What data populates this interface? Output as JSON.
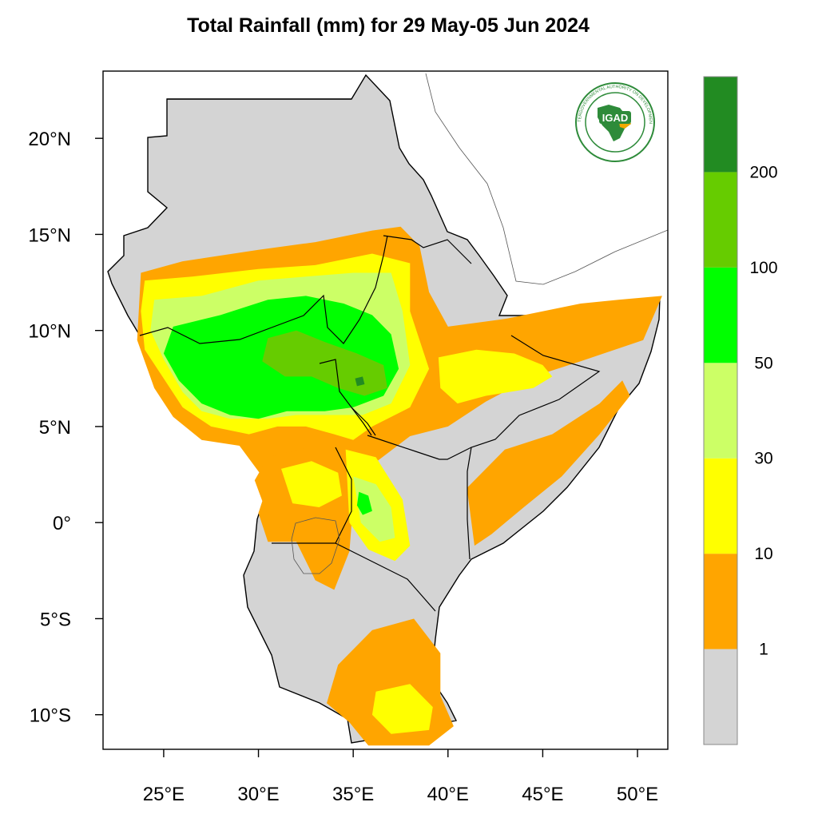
{
  "title": "Total Rainfall (mm) for 29 May-05 Jun 2024",
  "colors": {
    "land": "#d4d4d4",
    "ocean": "#ffffff",
    "border": "#000000",
    "lake": "#d4d4d4"
  },
  "axes": {
    "lon_range": [
      21.8,
      51.6
    ],
    "lat_range": [
      -11.8,
      23.5
    ],
    "x_ticks": [
      {
        "value": 25,
        "label": "25°E"
      },
      {
        "value": 30,
        "label": "30°E"
      },
      {
        "value": 35,
        "label": "35°E"
      },
      {
        "value": 40,
        "label": "40°E"
      },
      {
        "value": 45,
        "label": "45°E"
      },
      {
        "value": 50,
        "label": "50°E"
      }
    ],
    "y_ticks": [
      {
        "value": 20,
        "label": "20°N"
      },
      {
        "value": 15,
        "label": "15°N"
      },
      {
        "value": 10,
        "label": "10°N"
      },
      {
        "value": 5,
        "label": "5°N"
      },
      {
        "value": 0,
        "label": "0°"
      },
      {
        "value": -5,
        "label": "5°S"
      },
      {
        "value": -10,
        "label": "10°S"
      }
    ]
  },
  "legend": {
    "classes": [
      {
        "color": "#d4d4d4",
        "label": "1"
      },
      {
        "color": "#ffa500",
        "label": "10"
      },
      {
        "color": "#ffff00",
        "label": "30"
      },
      {
        "color": "#ccff66",
        "label": "50"
      },
      {
        "color": "#00ff00",
        "label": "100"
      },
      {
        "color": "#66cc00",
        "label": "200"
      },
      {
        "color": "#228b22",
        "label": ""
      }
    ]
  },
  "logo": {
    "text": "IGAD",
    "ring_text": "INTERGOVERNMENTAL AUTHORITY ON DEVELOPMENT",
    "primary_color": "#2e8b3a",
    "accent_color": "#f2a900"
  },
  "rainfall_regions": [
    {
      "name": "sahel-orange-band",
      "class": 1,
      "points": [
        [
          23.8,
          13.0
        ],
        [
          26,
          13.6
        ],
        [
          30,
          14.2
        ],
        [
          33,
          14.6
        ],
        [
          36,
          15.2
        ],
        [
          37.5,
          15.4
        ],
        [
          38.5,
          14.4
        ],
        [
          39,
          12.0
        ],
        [
          40,
          10.2
        ],
        [
          43,
          10.6
        ],
        [
          47,
          11.4
        ],
        [
          49,
          11.6
        ],
        [
          51.3,
          11.8
        ],
        [
          50.3,
          9.5
        ],
        [
          47,
          8.4
        ],
        [
          44.5,
          7.6
        ],
        [
          42,
          6.3
        ],
        [
          40,
          5.0
        ],
        [
          38,
          4.5
        ],
        [
          36,
          3.0
        ],
        [
          35,
          1.0
        ],
        [
          34.8,
          -1.5
        ],
        [
          34,
          -3.5
        ],
        [
          33,
          -3.0
        ],
        [
          32,
          -1.0
        ],
        [
          30.5,
          -1.0
        ],
        [
          30,
          0.5
        ],
        [
          30.5,
          2.0
        ],
        [
          29.0,
          4.0
        ],
        [
          27,
          4.3
        ],
        [
          25.5,
          5.5
        ],
        [
          24.5,
          7.0
        ],
        [
          23.6,
          9.5
        ]
      ]
    },
    {
      "name": "western-yellow-band",
      "class": 2,
      "points": [
        [
          24,
          12.6
        ],
        [
          26.5,
          12.8
        ],
        [
          30,
          13.2
        ],
        [
          33,
          13.4
        ],
        [
          36,
          14.0
        ],
        [
          38,
          13.5
        ],
        [
          38,
          11.0
        ],
        [
          39,
          8.0
        ],
        [
          38,
          6.0
        ],
        [
          36,
          5.0
        ],
        [
          35,
          4.3
        ],
        [
          34,
          4.6
        ],
        [
          32.5,
          5.0
        ],
        [
          31,
          5.0
        ],
        [
          29.5,
          4.6
        ],
        [
          27.5,
          5.0
        ],
        [
          26,
          6.0
        ],
        [
          25,
          7.5
        ],
        [
          24,
          9.0
        ],
        [
          23.8,
          11.0
        ]
      ]
    },
    {
      "name": "western-lightgreen-band",
      "class": 3,
      "points": [
        [
          24.5,
          11.6
        ],
        [
          27,
          11.8
        ],
        [
          30,
          12.6
        ],
        [
          32.5,
          12.8
        ],
        [
          35,
          13.0
        ],
        [
          37,
          13.0
        ],
        [
          37.6,
          11.0
        ],
        [
          38,
          8.2
        ],
        [
          37,
          6.2
        ],
        [
          35.5,
          5.6
        ],
        [
          34,
          5.6
        ],
        [
          32,
          5.6
        ],
        [
          30.5,
          5.4
        ],
        [
          28.5,
          5.4
        ],
        [
          27,
          5.8
        ],
        [
          26,
          6.8
        ],
        [
          25,
          8.5
        ],
        [
          24.3,
          10.0
        ]
      ]
    },
    {
      "name": "western-green-core",
      "class": 4,
      "points": [
        [
          25.5,
          10.2
        ],
        [
          28,
          10.8
        ],
        [
          30.5,
          11.6
        ],
        [
          32.5,
          11.8
        ],
        [
          34.5,
          11.4
        ],
        [
          36,
          10.8
        ],
        [
          37,
          9.8
        ],
        [
          37.4,
          8.0
        ],
        [
          36.6,
          6.6
        ],
        [
          35,
          6.0
        ],
        [
          33.5,
          5.8
        ],
        [
          31.5,
          5.8
        ],
        [
          30,
          5.4
        ],
        [
          28.5,
          5.6
        ],
        [
          27,
          6.2
        ],
        [
          25.8,
          7.4
        ],
        [
          25,
          8.8
        ]
      ]
    },
    {
      "name": "central-darkgreen-patches",
      "class": 5,
      "points": [
        [
          30.5,
          9.6
        ],
        [
          32,
          10.0
        ],
        [
          33.5,
          9.4
        ],
        [
          35.2,
          8.8
        ],
        [
          36.6,
          8.2
        ],
        [
          36.8,
          7.0
        ],
        [
          35.6,
          6.6
        ],
        [
          34.2,
          7.0
        ],
        [
          32.8,
          7.6
        ],
        [
          31.4,
          7.6
        ],
        [
          30.2,
          8.4
        ]
      ]
    },
    {
      "name": "central-max-spot",
      "class": 6,
      "points": [
        [
          35.1,
          7.5
        ],
        [
          35.5,
          7.6
        ],
        [
          35.6,
          7.2
        ],
        [
          35.2,
          7.1
        ]
      ]
    },
    {
      "name": "lake-victoria-orange",
      "class": 1,
      "points": [
        [
          30.5,
          3.4
        ],
        [
          33,
          4.0
        ],
        [
          34.6,
          3.4
        ],
        [
          35.0,
          1.0
        ],
        [
          34.6,
          -0.8
        ],
        [
          33,
          -1.2
        ],
        [
          31.5,
          -0.8
        ],
        [
          30.4,
          0.6
        ],
        [
          29.8,
          2.2
        ]
      ]
    },
    {
      "name": "lake-victoria-yellow",
      "class": 2,
      "points": [
        [
          31.2,
          2.8
        ],
        [
          32.8,
          3.2
        ],
        [
          34.2,
          2.6
        ],
        [
          34.4,
          1.4
        ],
        [
          33.2,
          0.8
        ],
        [
          31.8,
          1.0
        ]
      ]
    },
    {
      "name": "kenya-highlands-yellow",
      "class": 2,
      "points": [
        [
          34.6,
          3.8
        ],
        [
          36.2,
          3.4
        ],
        [
          37.6,
          1.2
        ],
        [
          38.0,
          -1.2
        ],
        [
          37.2,
          -2.0
        ],
        [
          35.8,
          -1.4
        ],
        [
          34.8,
          0.0
        ]
      ]
    },
    {
      "name": "kenya-highlands-lightgreen",
      "class": 3,
      "points": [
        [
          35.0,
          2.4
        ],
        [
          36.2,
          2.0
        ],
        [
          37.0,
          0.8
        ],
        [
          37.2,
          -0.8
        ],
        [
          36.4,
          -1.0
        ],
        [
          35.4,
          0.0
        ]
      ]
    },
    {
      "name": "kenya-highlands-green",
      "class": 4,
      "points": [
        [
          35.3,
          1.6
        ],
        [
          35.8,
          1.4
        ],
        [
          36.0,
          0.6
        ],
        [
          35.5,
          0.4
        ],
        [
          35.2,
          0.9
        ]
      ]
    },
    {
      "name": "ethiopia-east-yellow",
      "class": 2,
      "points": [
        [
          39.5,
          8.6
        ],
        [
          41.5,
          9.0
        ],
        [
          43.5,
          8.8
        ],
        [
          45.0,
          8.2
        ],
        [
          45.5,
          7.6
        ],
        [
          44.5,
          7.0
        ],
        [
          42,
          6.6
        ],
        [
          40.5,
          6.2
        ],
        [
          39.6,
          7.0
        ]
      ]
    },
    {
      "name": "somalia-coast-orange",
      "class": 1,
      "points": [
        [
          41.0,
          1.8
        ],
        [
          43.0,
          3.8
        ],
        [
          45.5,
          4.6
        ],
        [
          48.0,
          6.2
        ],
        [
          49.2,
          7.4
        ],
        [
          49.6,
          6.6
        ],
        [
          48.0,
          4.6
        ],
        [
          46.0,
          2.4
        ],
        [
          44.0,
          0.8
        ],
        [
          42.3,
          -0.6
        ],
        [
          41.4,
          -1.2
        ]
      ]
    },
    {
      "name": "tanzania-south-orange",
      "class": 1,
      "points": [
        [
          34.2,
          -7.4
        ],
        [
          36.0,
          -5.6
        ],
        [
          38.2,
          -5.0
        ],
        [
          39.6,
          -6.8
        ],
        [
          39.6,
          -9.0
        ],
        [
          40.3,
          -10.6
        ],
        [
          39.0,
          -11.6
        ],
        [
          35.8,
          -11.6
        ],
        [
          34.8,
          -10.4
        ],
        [
          33.6,
          -9.4
        ]
      ]
    },
    {
      "name": "tanzania-south-yellow",
      "class": 2,
      "points": [
        [
          36.2,
          -8.8
        ],
        [
          38.0,
          -8.4
        ],
        [
          39.2,
          -9.6
        ],
        [
          39.0,
          -10.8
        ],
        [
          37.0,
          -11.0
        ],
        [
          36.0,
          -10.0
        ]
      ]
    }
  ]
}
